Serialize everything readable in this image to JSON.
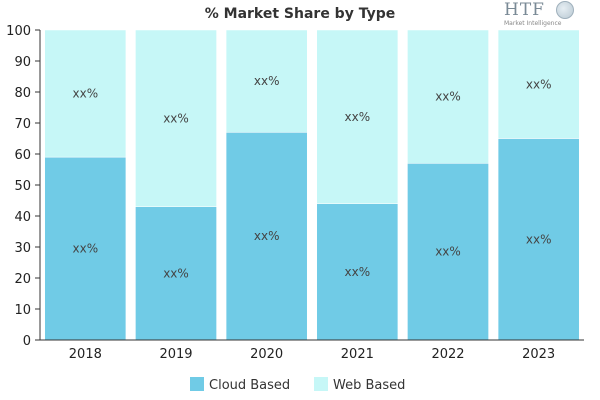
{
  "logo": {
    "text": "HTF",
    "subtext": "Market Intelligence"
  },
  "chart_data": {
    "type": "bar",
    "stacked": true,
    "title": "% Market Share by Type",
    "categories": [
      "2018",
      "2019",
      "2020",
      "2021",
      "2022",
      "2023"
    ],
    "series": [
      {
        "name": "Cloud Based",
        "color": "#70cbe6",
        "values": [
          59,
          43,
          67,
          44,
          57,
          65
        ],
        "labels": [
          "xx%",
          "xx%",
          "xx%",
          "xx%",
          "xx%",
          "xx%"
        ]
      },
      {
        "name": "Web Based",
        "color": "#c6f7f7",
        "values": [
          41,
          57,
          33,
          56,
          43,
          35
        ],
        "labels": [
          "xx%",
          "xx%",
          "xx%",
          "xx%",
          "xx%",
          "xx%"
        ]
      }
    ],
    "ylim": [
      0,
      100
    ],
    "yticks": [
      0,
      10,
      20,
      30,
      40,
      50,
      60,
      70,
      80,
      90,
      100
    ],
    "grid": false,
    "legend": "bottom-center"
  }
}
